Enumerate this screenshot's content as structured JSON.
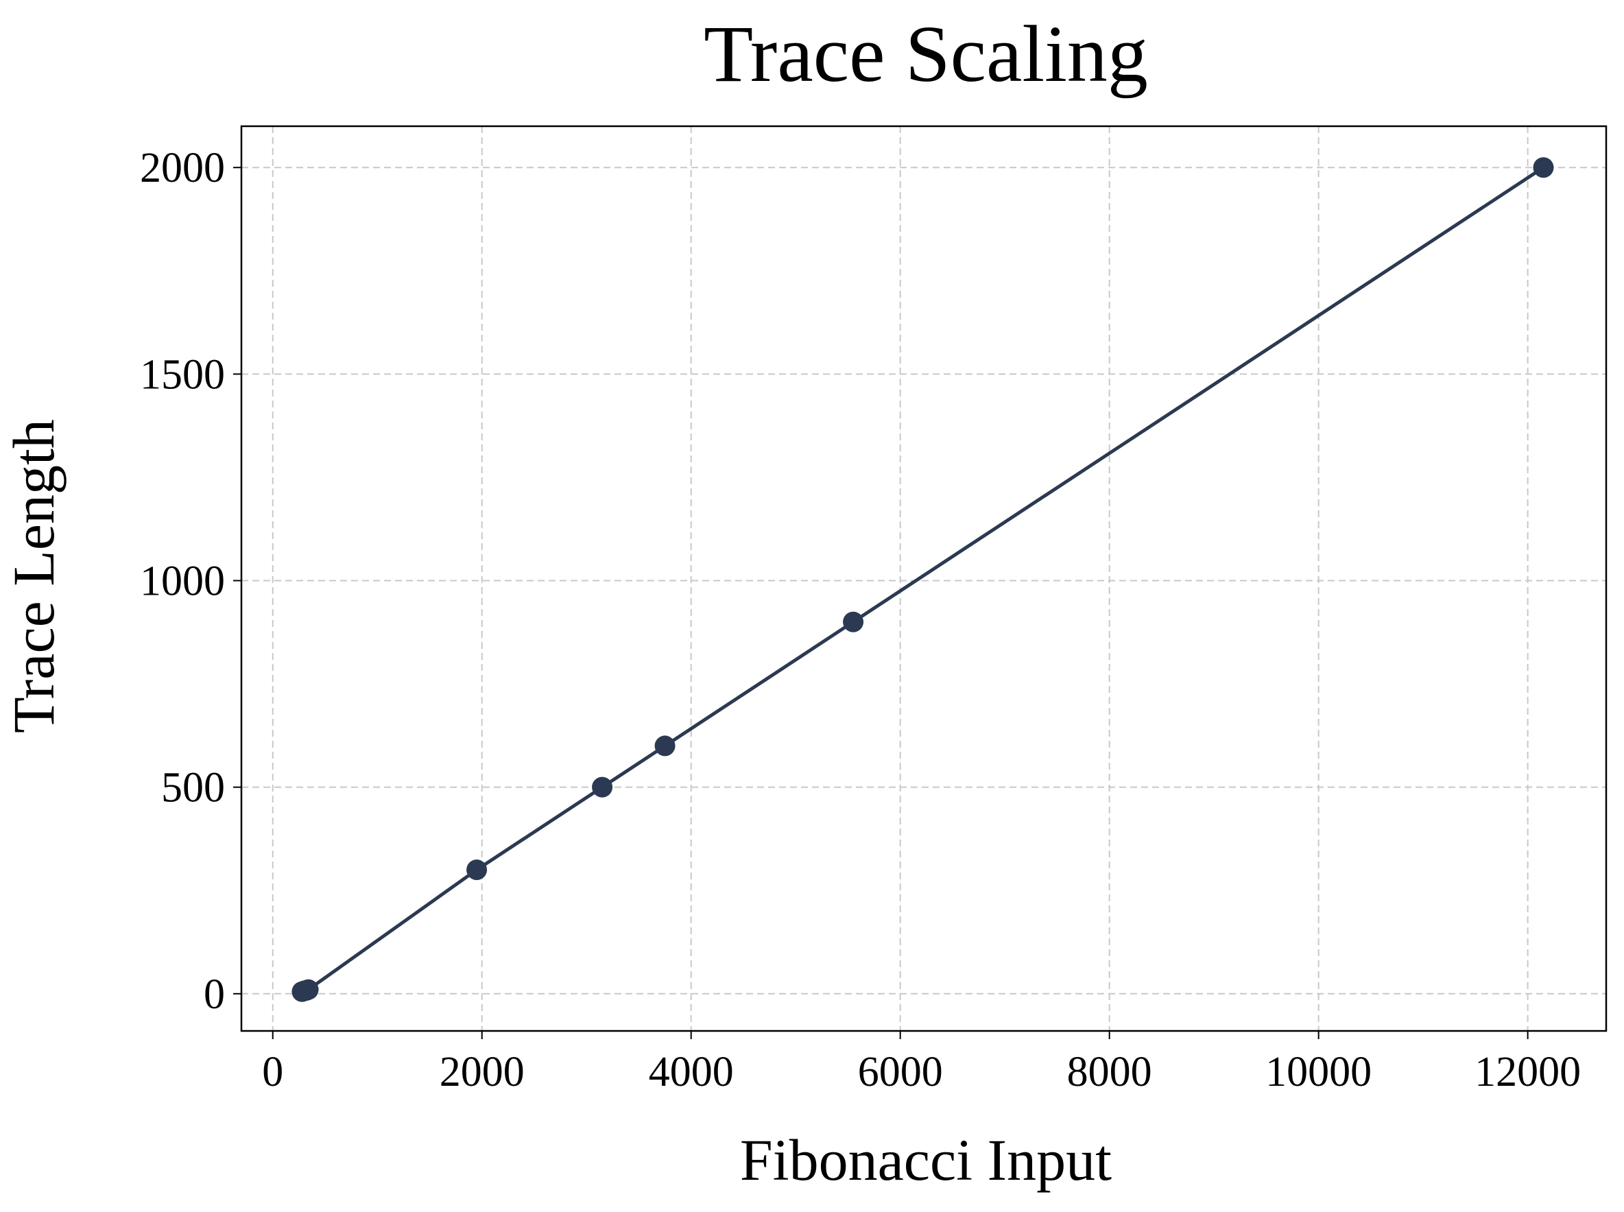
{
  "chart_data": {
    "type": "line",
    "title": "Trace Scaling",
    "xlabel": "Fibonacci Input",
    "ylabel": "Trace Length",
    "xlim": [
      -300,
      12750
    ],
    "ylim": [
      -90,
      2100
    ],
    "x_ticks": [
      0,
      2000,
      4000,
      6000,
      8000,
      10000,
      12000
    ],
    "y_ticks": [
      0,
      500,
      1000,
      1500,
      2000
    ],
    "grid": true,
    "legend": "none",
    "series": [
      {
        "color": "#2b3a52",
        "marker": "circle",
        "points": [
          {
            "x": 280,
            "y": 5
          },
          {
            "x": 300,
            "y": 7
          },
          {
            "x": 320,
            "y": 8
          },
          {
            "x": 340,
            "y": 10
          },
          {
            "x": 1950,
            "y": 300
          },
          {
            "x": 3150,
            "y": 500
          },
          {
            "x": 3750,
            "y": 600
          },
          {
            "x": 5550,
            "y": 900
          },
          {
            "x": 12150,
            "y": 2000
          }
        ]
      }
    ]
  }
}
